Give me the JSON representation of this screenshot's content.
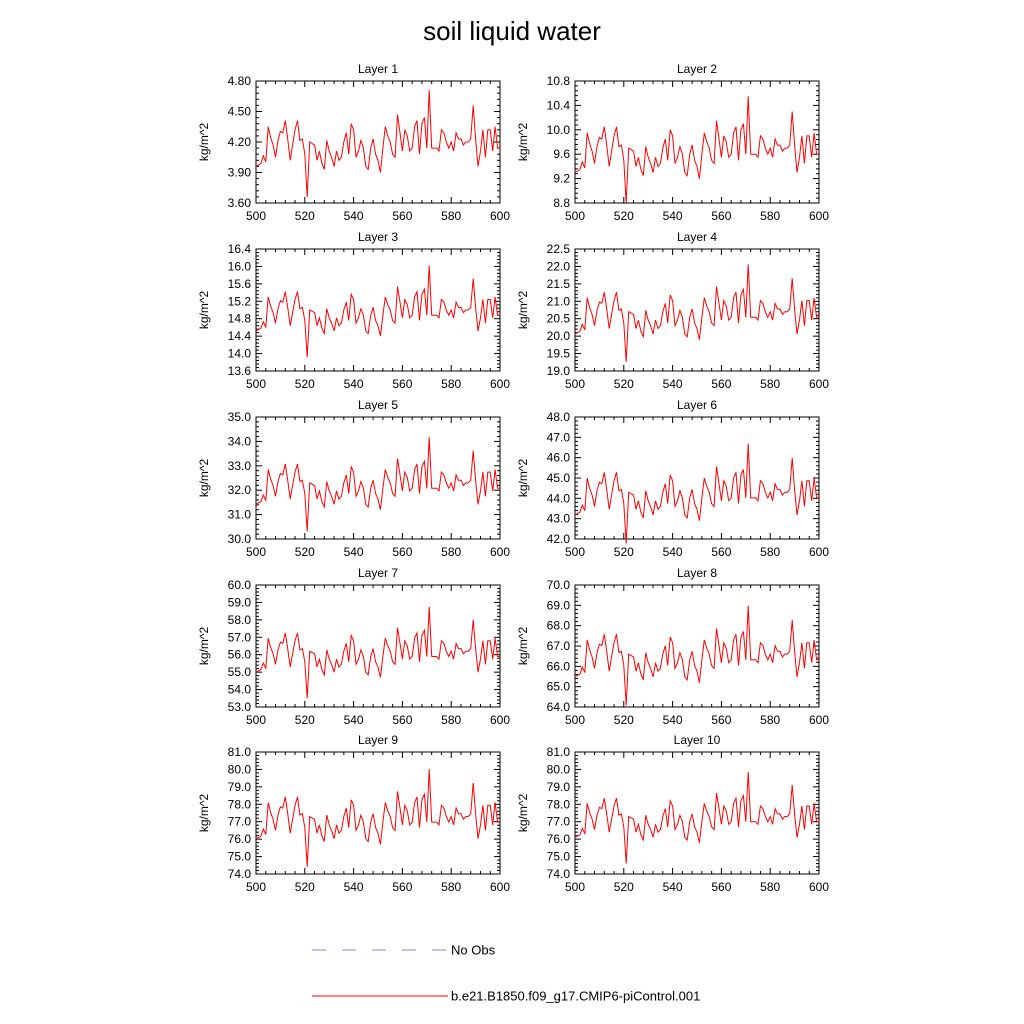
{
  "chart_data": {
    "type": "line",
    "title": "soil liquid water",
    "ylabel": "kg/m^2",
    "xlim": [
      500,
      600
    ],
    "xticks": [
      "500",
      "520",
      "540",
      "560",
      "580",
      "600"
    ],
    "legend": {
      "placement": "bottom-center",
      "entries": [
        {
          "label": "No Obs",
          "color": "#8080e0",
          "style": "dashed"
        },
        {
          "label": "b.e21.B1850.f09_g17.CMIP6-piControl.001",
          "color": "#ff0000",
          "style": "solid"
        }
      ]
    },
    "series_color": "#ff0000",
    "base_pattern": [
      -0.8,
      -0.75,
      -0.7,
      -0.45,
      -0.65,
      0.5,
      0.15,
      -0.1,
      -0.5,
      0.05,
      0.35,
      0.3,
      0.7,
      0.1,
      -0.6,
      -0.1,
      0.4,
      0.7,
      0.05,
      0.1,
      -0.4,
      -1.8,
      0.0,
      -0.05,
      -0.1,
      -0.6,
      -0.3,
      -0.7,
      -0.9,
      0.05,
      -0.3,
      -0.5,
      -0.8,
      -0.3,
      -0.6,
      -0.5,
      0.0,
      0.3,
      -0.4,
      0.6,
      0.4,
      -0.5,
      -0.3,
      0.05,
      -0.2,
      -0.8,
      -0.9,
      -0.2,
      0.1,
      -0.4,
      -0.6,
      -1.0,
      -0.2,
      0.5,
      0.2,
      0.0,
      -0.4,
      -0.5,
      0.9,
      0.3,
      -0.3,
      0.4,
      0.2,
      -0.3,
      -0.2,
      0.5,
      0.7,
      -0.4,
      0.6,
      0.8,
      -0.2,
      1.7,
      -0.2,
      -0.2,
      -0.2,
      -0.3,
      0.4,
      0.3,
      0.0,
      -0.2,
      0.0,
      -0.3,
      0.3,
      0.1,
      0.1,
      -0.1,
      0.0,
      0.0,
      0.1,
      1.2,
      0.1,
      -0.8,
      -0.3,
      0.4,
      -0.5,
      0.4,
      0.4,
      -0.3,
      0.5,
      -0.2,
      -0.2
    ],
    "panels": [
      {
        "title": "Layer 1",
        "ylim": [
          3.6,
          4.8
        ],
        "yticks": [
          "3.60",
          "3.90",
          "4.20",
          "4.50",
          "4.80"
        ],
        "mean": 4.2,
        "amp": 0.3
      },
      {
        "title": "Layer 2",
        "ylim": [
          8.8,
          10.8
        ],
        "yticks": [
          "8.8",
          "9.2",
          "9.6",
          "10.0",
          "10.4",
          "10.8"
        ],
        "mean": 9.7,
        "amp": 0.5
      },
      {
        "title": "Layer 3",
        "ylim": [
          13.6,
          16.4
        ],
        "yticks": [
          "13.6",
          "14.0",
          "14.4",
          "14.8",
          "15.2",
          "15.6",
          "16.0",
          "16.4"
        ],
        "mean": 15.0,
        "amp": 0.6
      },
      {
        "title": "Layer 4",
        "ylim": [
          19.0,
          22.5
        ],
        "yticks": [
          "19.0",
          "19.5",
          "20.0",
          "20.5",
          "21.0",
          "21.5",
          "22.0",
          "22.5"
        ],
        "mean": 20.7,
        "amp": 0.8
      },
      {
        "title": "Layer 5",
        "ylim": [
          30.0,
          35.0
        ],
        "yticks": [
          "30.0",
          "31.0",
          "32.0",
          "33.0",
          "34.0",
          "35.0"
        ],
        "mean": 32.3,
        "amp": 1.1
      },
      {
        "title": "Layer 6",
        "ylim": [
          42.0,
          48.0
        ],
        "yticks": [
          "42.0",
          "43.0",
          "44.0",
          "45.0",
          "46.0",
          "47.0",
          "48.0"
        ],
        "mean": 44.3,
        "amp": 1.4
      },
      {
        "title": "Layer 7",
        "ylim": [
          53.0,
          60.0
        ],
        "yticks": [
          "53.0",
          "54.0",
          "55.0",
          "56.0",
          "57.0",
          "58.0",
          "59.0",
          "60.0"
        ],
        "mean": 56.2,
        "amp": 1.5
      },
      {
        "title": "Layer 8",
        "ylim": [
          64.0,
          70.0
        ],
        "yticks": [
          "64.0",
          "65.0",
          "66.0",
          "67.0",
          "68.0",
          "69.0",
          "70.0"
        ],
        "mean": 66.6,
        "amp": 1.4
      },
      {
        "title": "Layer 9",
        "ylim": [
          74.0,
          81.0
        ],
        "yticks": [
          "74.0",
          "75.0",
          "76.0",
          "77.0",
          "78.0",
          "79.0",
          "80.0",
          "81.0"
        ],
        "mean": 77.3,
        "amp": 1.6
      },
      {
        "title": "Layer 10",
        "ylim": [
          74.0,
          81.0
        ],
        "yticks": [
          "74.0",
          "75.0",
          "76.0",
          "77.0",
          "78.0",
          "79.0",
          "80.0",
          "81.0"
        ],
        "mean": 77.3,
        "amp": 1.5
      }
    ]
  }
}
